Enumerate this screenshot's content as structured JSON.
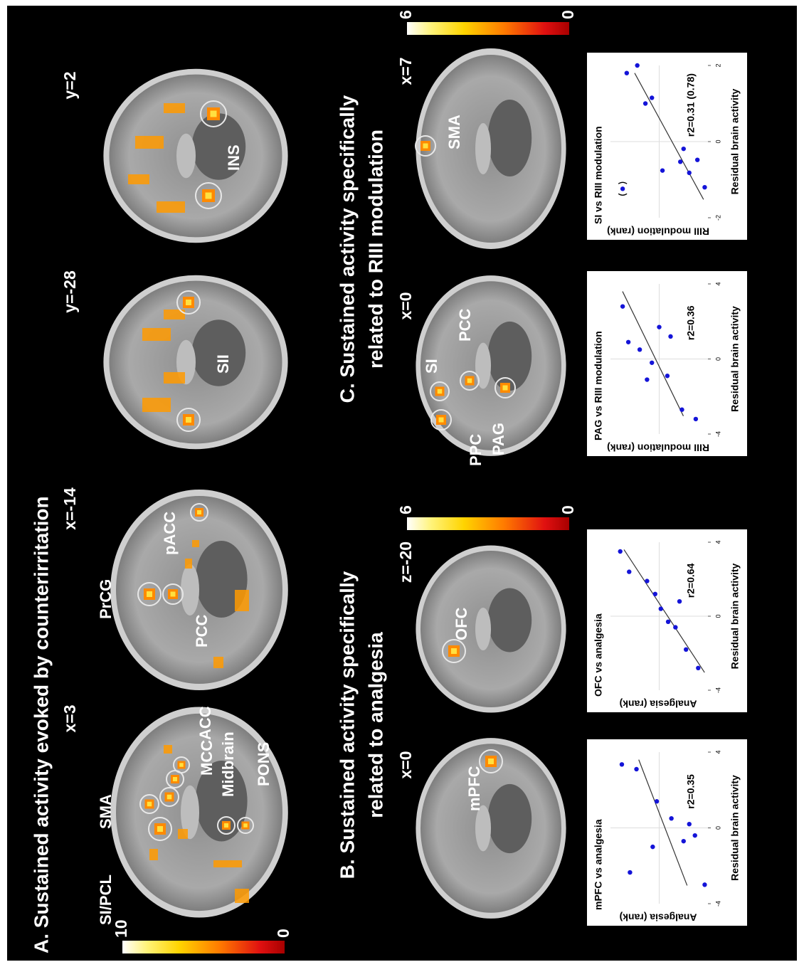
{
  "panel_a": {
    "title": "A. Sustained activity evoked by counterirritation",
    "colorbar": {
      "max": 10,
      "min": 0
    },
    "images": [
      {
        "label": "x=3",
        "regions": [
          "SI/PCL",
          "SMA",
          "ACC",
          "MCC",
          "Midbrain",
          "PONS"
        ]
      },
      {
        "label": "x=-14",
        "regions": [
          "PrCG",
          "PCC",
          "pACC"
        ]
      },
      {
        "label": "y=-28",
        "regions": [
          "SII"
        ]
      },
      {
        "label": "y=2",
        "regions": [
          "INS"
        ]
      }
    ]
  },
  "panel_b": {
    "title": [
      "B. Sustained activity specifically",
      "related to analgesia"
    ],
    "colorbar": {
      "max": 6,
      "min": 0
    },
    "images": [
      {
        "label": "x=0",
        "regions": [
          "mPFC"
        ]
      },
      {
        "label": "z=-20",
        "regions": [
          "OFC"
        ]
      }
    ],
    "plots": [
      {
        "type": "scatter",
        "title": "mPFC vs analgesia",
        "annotation": "r2=0.35",
        "x_label": "Residual brain activity",
        "y_label": "Analgesia (rank)",
        "xlim": [
          -4,
          4
        ],
        "xticks": [
          -4,
          0,
          4
        ],
        "ylim": [
          0,
          12
        ],
        "x": [
          3.35,
          3.1,
          1.4,
          0.5,
          -1.0,
          0.2,
          -0.4,
          -0.7,
          -2.35,
          -3.0
        ],
        "y": [
          10.6,
          8.8,
          6.3,
          4.5,
          6.8,
          2.3,
          1.6,
          3.0,
          9.6,
          0.4
        ]
      },
      {
        "type": "scatter",
        "title": "OFC vs analgesia",
        "annotation": "r2=0.64",
        "x_label": "Residual brain activity",
        "y_label": "Analgesia (rank)",
        "xlim": [
          -4,
          4
        ],
        "xticks": [
          -4,
          0,
          4
        ],
        "ylim": [
          0,
          12
        ],
        "x": [
          3.5,
          2.4,
          1.9,
          1.2,
          0.4,
          -0.3,
          -0.6,
          0.8,
          -1.8,
          -2.8
        ],
        "y": [
          10.8,
          9.7,
          7.5,
          6.5,
          5.8,
          4.9,
          4.0,
          3.5,
          2.7,
          1.2
        ]
      }
    ]
  },
  "panel_c": {
    "title": [
      "C. Sustained activity specifically",
      "related to RIII modulation"
    ],
    "colorbar": {
      "max": 6,
      "min": 0
    },
    "images": [
      {
        "label": "x=0",
        "regions": [
          "SI",
          "PCC",
          "PPC",
          "PAG"
        ]
      },
      {
        "label": "x=7",
        "regions": [
          "SMA"
        ]
      }
    ],
    "plots": [
      {
        "type": "scatter",
        "title": "PAG vs RIII modulation",
        "annotation": "r2=0.36",
        "x_label": "Residual brain activity",
        "y_label": "RIII modulation (rank)",
        "xlim": [
          -4,
          4
        ],
        "xticks": [
          -4,
          0,
          4
        ],
        "ylim": [
          0,
          12
        ],
        "x": [
          2.8,
          0.9,
          -1.1,
          0.5,
          -0.2,
          1.7,
          1.2,
          -0.9,
          -2.7,
          -3.2
        ],
        "y": [
          10.5,
          9.8,
          7.5,
          8.4,
          6.9,
          6.0,
          4.6,
          5.0,
          3.2,
          1.5
        ]
      },
      {
        "type": "scatter",
        "title": "SI vs RIII modulation",
        "annotation": "r2=0.31 (0.78)",
        "x_label": "Residual brain activity",
        "y_label": "RIII modulation (rank)",
        "xlim": [
          -2,
          2
        ],
        "xticks": [
          -2,
          0,
          2
        ],
        "ylim": [
          0,
          12
        ],
        "x": [
          1.8,
          2.0,
          1.0,
          1.15,
          -0.76,
          -0.53,
          -0.19,
          -0.82,
          -0.48,
          -1.2
        ],
        "y": [
          10.0,
          8.7,
          7.7,
          6.9,
          5.6,
          3.4,
          3.0,
          2.3,
          1.3,
          0.4
        ],
        "outlier": {
          "x": -1.24,
          "y": 10.5
        }
      }
    ]
  }
}
